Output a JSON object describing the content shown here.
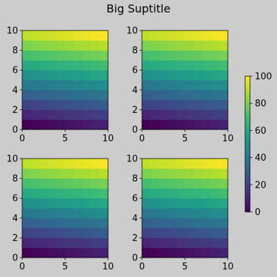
{
  "figure": {
    "suptitle": "Big Suptitle",
    "background": "#cccccc"
  },
  "chart_data": {
    "type": "heatmap",
    "colormap": "viridis",
    "panel_count": 4,
    "layout": "2x2 grid",
    "grid": false,
    "xlim": [
      0,
      10
    ],
    "ylim": [
      0,
      10
    ],
    "xticks": [
      0,
      5,
      10
    ],
    "yticks": [
      0,
      2,
      4,
      6,
      8,
      10
    ],
    "x_edges": [
      0,
      1,
      2,
      3,
      4,
      5,
      6,
      7,
      8,
      9,
      10
    ],
    "y_edges": [
      0,
      1,
      2,
      3,
      4,
      5,
      6,
      7,
      8,
      9,
      10
    ],
    "value_formula": "value = 10*row + col (row, col in 0..9)",
    "values": [
      [
        0,
        1,
        2,
        3,
        4,
        5,
        6,
        7,
        8,
        9
      ],
      [
        10,
        11,
        12,
        13,
        14,
        15,
        16,
        17,
        18,
        19
      ],
      [
        20,
        21,
        22,
        23,
        24,
        25,
        26,
        27,
        28,
        29
      ],
      [
        30,
        31,
        32,
        33,
        34,
        35,
        36,
        37,
        38,
        39
      ],
      [
        40,
        41,
        42,
        43,
        44,
        45,
        46,
        47,
        48,
        49
      ],
      [
        50,
        51,
        52,
        53,
        54,
        55,
        56,
        57,
        58,
        59
      ],
      [
        60,
        61,
        62,
        63,
        64,
        65,
        66,
        67,
        68,
        69
      ],
      [
        70,
        71,
        72,
        73,
        74,
        75,
        76,
        77,
        78,
        79
      ],
      [
        80,
        81,
        82,
        83,
        84,
        85,
        86,
        87,
        88,
        89
      ],
      [
        90,
        91,
        92,
        93,
        94,
        95,
        96,
        97,
        98,
        99
      ]
    ],
    "colorbar": {
      "vmin": 0,
      "vmax": 100,
      "ticks": [
        0,
        20,
        40,
        60,
        80,
        100
      ],
      "placement": "right"
    }
  }
}
